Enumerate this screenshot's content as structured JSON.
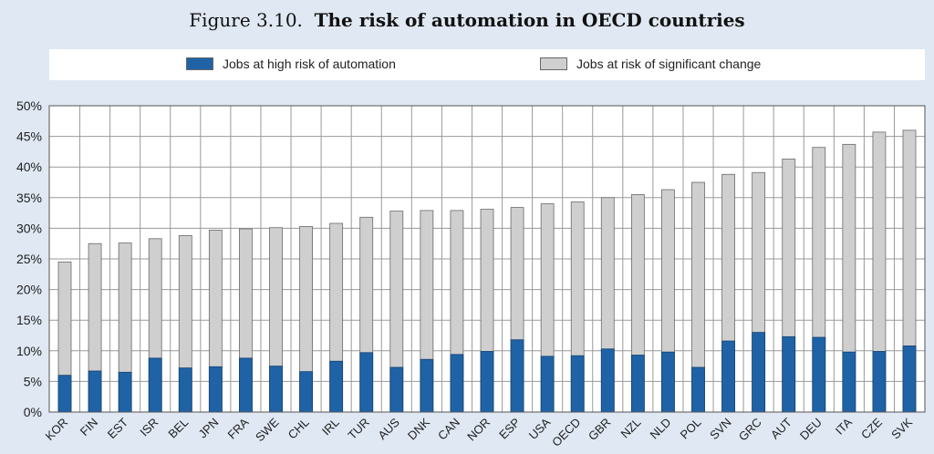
{
  "figure": {
    "number": "Figure 3.10.",
    "title": "The risk of automation in OECD countries"
  },
  "legend": [
    {
      "name": "Jobs at high risk of automation",
      "color": "#1f63a6"
    },
    {
      "name": "Jobs at risk of significant change",
      "color": "#cfcfcf"
    }
  ],
  "chart_data": {
    "type": "bar",
    "stacked": false,
    "overlay": true,
    "title": "The risk of automation in OECD countries",
    "categories": [
      "KOR",
      "FIN",
      "EST",
      "ISR",
      "BEL",
      "JPN",
      "FRA",
      "SWE",
      "CHL",
      "IRL",
      "TUR",
      "AUS",
      "DNK",
      "CAN",
      "NOR",
      "ESP",
      "USA",
      "OECD",
      "GBR",
      "NZL",
      "NLD",
      "POL",
      "SVN",
      "GRC",
      "AUT",
      "DEU",
      "ITA",
      "CZE",
      "SVK"
    ],
    "series": [
      {
        "name": "Jobs at high risk of automation",
        "color": "#1f63a6",
        "values": [
          6,
          6.7,
          6.5,
          8.8,
          7.2,
          7.4,
          8.8,
          7.5,
          6.6,
          8.3,
          9.7,
          7.3,
          8.6,
          9.4,
          9.9,
          11.8,
          9.1,
          9.2,
          10.3,
          9.3,
          9.8,
          7.3,
          11.6,
          13,
          12.3,
          12.2,
          9.8,
          9.9,
          10.8
        ]
      },
      {
        "name": "Jobs at risk of significant change",
        "color": "#cfcfcf",
        "values": [
          24.5,
          27.5,
          27.6,
          28.3,
          28.8,
          29.7,
          29.9,
          30.1,
          30.3,
          30.8,
          31.8,
          32.8,
          32.9,
          32.9,
          33.1,
          33.4,
          34,
          34.3,
          35,
          35.5,
          36.3,
          37.5,
          38.8,
          39.1,
          41.3,
          43.2,
          43.7,
          45.7,
          46
        ]
      }
    ],
    "xlabel": "",
    "ylabel": "",
    "ylim": [
      0,
      50
    ],
    "yticks": [
      0,
      5,
      10,
      15,
      20,
      25,
      30,
      35,
      40,
      45,
      50
    ],
    "ytick_format": "percent",
    "grid": true,
    "legend_position": "top"
  }
}
